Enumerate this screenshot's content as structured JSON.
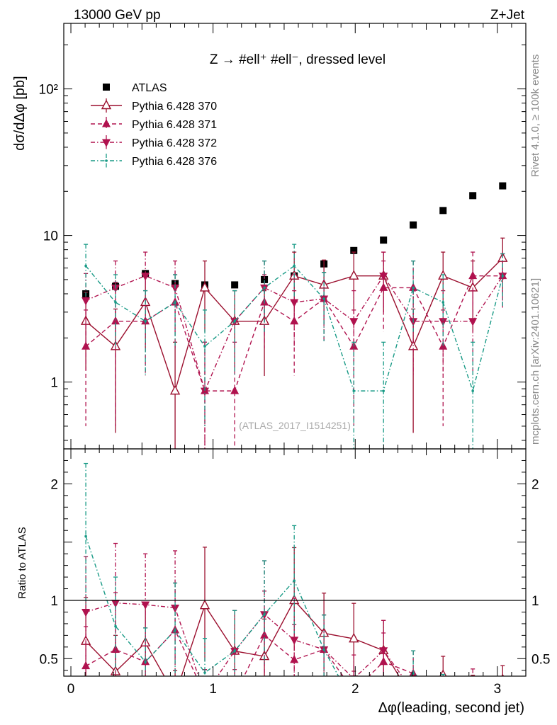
{
  "header": {
    "left": "13000 GeV pp",
    "right": "Z+Jet",
    "plot_title": "Z → #ell⁺ #ell⁻, dressed level",
    "side_top": "Rivet 4.1.0, ≥ 100k events",
    "side_bottom": "mcplots.cern.ch [arXiv:2401.10621]",
    "analysis_tag": "(ATLAS_2017_I1514251)"
  },
  "chart_data": [
    {
      "type": "scatter",
      "panel": "main",
      "ylabel": "dσ/dΔφ [pb]",
      "yscale": "log",
      "ylim": [
        0.35,
        280
      ],
      "xlim": [
        -0.05,
        3.2
      ],
      "yticks": [
        {
          "v": 1,
          "label": "1"
        },
        {
          "v": 10,
          "label": "10"
        },
        {
          "v": 100,
          "label": "10²"
        }
      ],
      "x": [
        0.105,
        0.314,
        0.524,
        0.733,
        0.942,
        1.152,
        1.361,
        1.571,
        1.78,
        1.99,
        2.199,
        2.408,
        2.618,
        2.827,
        3.037
      ],
      "series": [
        {
          "name": "ATLAS",
          "key": "atlas",
          "color": "#000000",
          "marker": "square",
          "line": "none",
          "values": [
            4.0,
            4.5,
            5.5,
            4.7,
            4.6,
            4.6,
            5.0,
            5.3,
            6.4,
            7.9,
            9.3,
            11.8,
            14.8,
            18.7,
            21.8
          ]
        },
        {
          "name": "Pythia 6.428 370",
          "key": "p370",
          "color": "#9b0f2e",
          "marker": "triangle-up-open",
          "line": "solid",
          "values": [
            2.6,
            1.75,
            3.5,
            0.87,
            4.4,
            2.6,
            2.6,
            5.3,
            4.6,
            5.3,
            5.3,
            1.75,
            5.3,
            4.4,
            7.0
          ],
          "err_lo": [
            1.4,
            1.3,
            1.8,
            0.87,
            2.2,
            1.4,
            1.5,
            2.3,
            2.1,
            2.3,
            2.3,
            1.3,
            2.3,
            2.2,
            3.0
          ],
          "err_hi": [
            1.5,
            1.4,
            1.9,
            1.0,
            2.3,
            1.6,
            1.6,
            2.4,
            2.2,
            2.4,
            2.4,
            1.4,
            2.4,
            2.3,
            2.6
          ]
        },
        {
          "name": "Pythia 6.428 371",
          "key": "p371",
          "color": "#b0124e",
          "marker": "triangle-up",
          "line": "dashed",
          "values": [
            1.75,
            2.6,
            2.6,
            3.5,
            0.87,
            0.87,
            3.5,
            2.6,
            3.7,
            1.75,
            4.4,
            4.4,
            1.75,
            5.3,
            5.3
          ],
          "err_lo": [
            1.25,
            2.1,
            1.5,
            1.8,
            0.87,
            0.87,
            1.8,
            1.5,
            1.8,
            1.25,
            2.2,
            2.2,
            1.25,
            2.3,
            2.1
          ],
          "err_hi": [
            1.35,
            2.2,
            1.6,
            1.9,
            1.0,
            1.0,
            1.9,
            1.6,
            1.9,
            1.35,
            2.3,
            2.3,
            1.35,
            2.4,
            2.2
          ]
        },
        {
          "name": "Pythia 6.428 372",
          "key": "p372",
          "color": "#b0124e",
          "marker": "triangle-down",
          "line": "dashdot",
          "values": [
            3.6,
            4.4,
            5.3,
            4.4,
            0.87,
            2.6,
            4.4,
            3.5,
            3.7,
            2.6,
            5.3,
            2.6,
            2.6,
            2.6,
            5.3
          ],
          "err_lo": [
            1.8,
            2.2,
            2.3,
            2.2,
            0.87,
            1.5,
            2.2,
            1.8,
            1.8,
            1.5,
            2.3,
            1.5,
            1.5,
            1.5,
            2.1
          ],
          "err_hi": [
            1.9,
            2.3,
            2.4,
            2.3,
            1.0,
            1.6,
            2.3,
            1.9,
            1.9,
            1.6,
            2.4,
            1.6,
            1.6,
            1.6,
            2.2
          ]
        },
        {
          "name": "Pythia 6.428 376",
          "key": "p376",
          "color": "#189a86",
          "marker": "dot",
          "line": "dashdot",
          "values": [
            6.2,
            3.5,
            2.6,
            3.5,
            1.75,
            2.6,
            4.4,
            6.2,
            3.7,
            0.87,
            0.87,
            4.4,
            3.5,
            0.87,
            5.3
          ],
          "err_lo": [
            2.4,
            1.8,
            1.5,
            1.8,
            1.25,
            1.5,
            2.2,
            2.4,
            1.8,
            0.87,
            0.87,
            2.2,
            1.8,
            0.87,
            2.1
          ],
          "err_hi": [
            2.5,
            1.9,
            1.6,
            1.9,
            1.35,
            1.6,
            2.3,
            2.5,
            1.9,
            1.0,
            1.0,
            2.3,
            1.9,
            1.0,
            2.2
          ]
        }
      ]
    },
    {
      "type": "scatter",
      "panel": "ratio",
      "ylabel": "Ratio to ATLAS",
      "xlabel": "Δφ(leading, second jet)",
      "ylim": [
        0.35,
        2.3
      ],
      "xlim": [
        -0.05,
        3.2
      ],
      "yticks": [
        {
          "v": 0.5,
          "label": "0.5"
        },
        {
          "v": 1,
          "label": "1"
        },
        {
          "v": 2,
          "label": "2"
        }
      ],
      "xticks": [
        {
          "v": 0,
          "label": "0"
        },
        {
          "v": 1,
          "label": "1"
        },
        {
          "v": 2,
          "label": "2"
        },
        {
          "v": 3,
          "label": "3"
        }
      ],
      "reference_line": 1
    }
  ]
}
